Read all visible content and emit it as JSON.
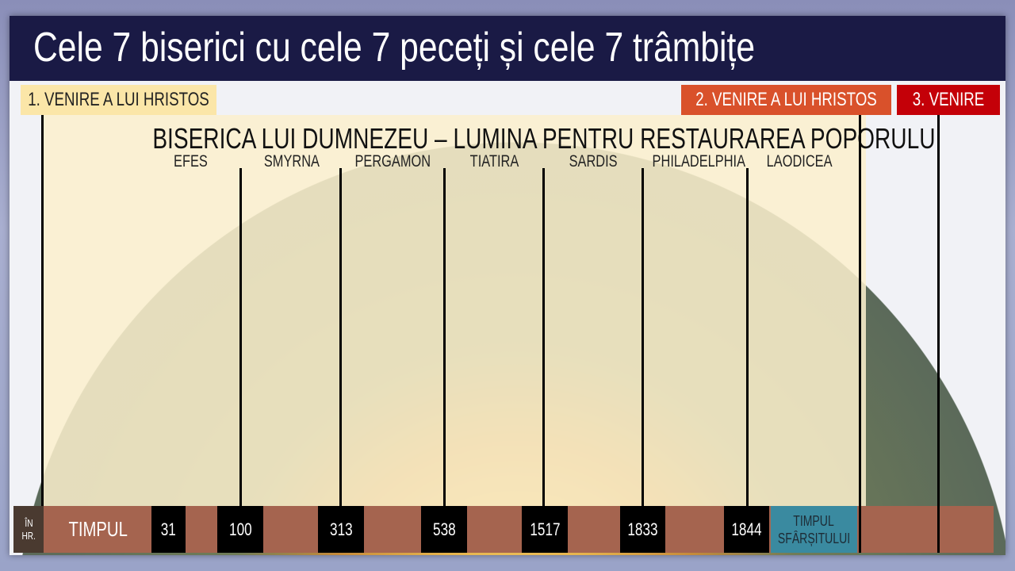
{
  "title": "Cele 7 biserici cu cele 7 peceți și cele 7 trâmbițe",
  "comings": {
    "first": "1. VENIRE A LUI HRISTOS",
    "second": "2. VENIRE A LUI HRISTOS",
    "third": "3. VENIRE"
  },
  "heading": "BISERICA LUI DUMNEZEU – LUMINA PENTRU RESTAURAREA POPORULUI",
  "churches": [
    "EFES",
    "SMYRNA",
    "PERGAMON",
    "TIATIRA",
    "SARDIS",
    "PHILADELPHIA",
    "LAODICEA"
  ],
  "timeline": {
    "bc_line1": "ÎN",
    "bc_line2": "HR.",
    "label": "TIMPUL",
    "years": [
      "31",
      "100",
      "313",
      "538",
      "1517",
      "1833",
      "1844"
    ],
    "end_line1": "TIMPUL",
    "end_line2": "SFÂRȘITULUI"
  },
  "colors": {
    "title_bg": "#1a1a45",
    "first": "#fbe6a8",
    "second": "#d9512b",
    "third": "#c40008",
    "bar": "#a5644f",
    "end_time": "#3a8aa0"
  }
}
